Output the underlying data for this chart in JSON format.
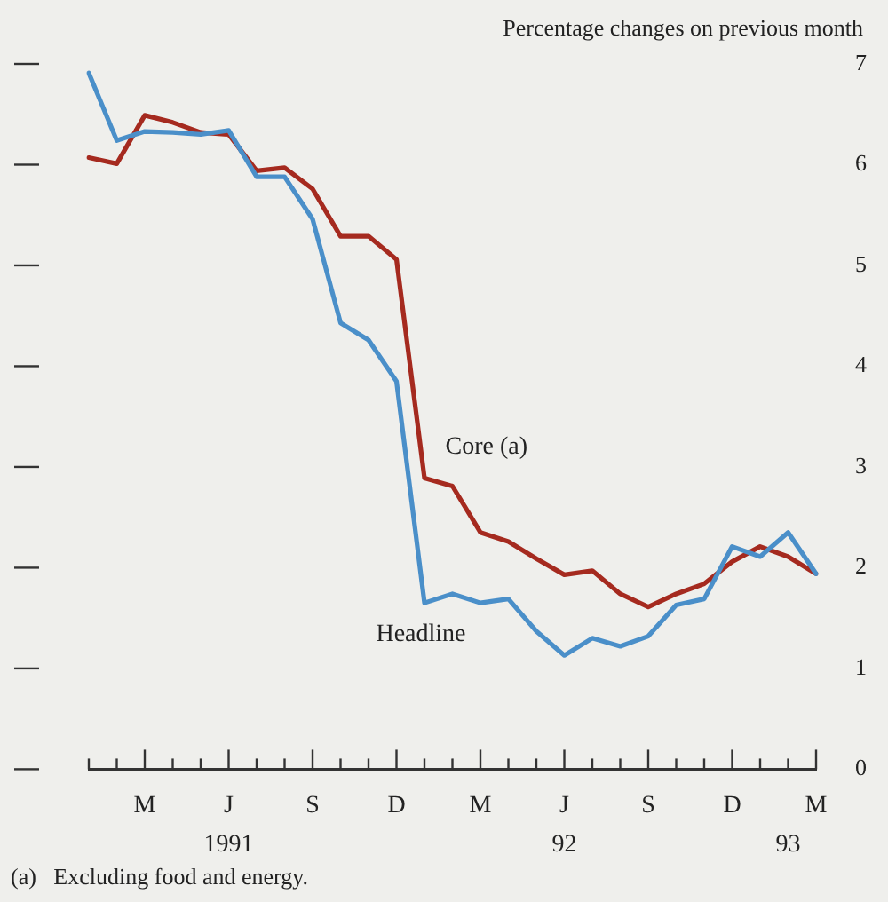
{
  "chart_data": {
    "type": "line",
    "ylabel": "Percentage changes on previous month",
    "annotations": [
      "1991",
      "92",
      "93",
      "(a)   Excluding food and energy."
    ],
    "categories": [
      null,
      null,
      "M",
      null,
      null,
      "J",
      null,
      null,
      "S",
      null,
      null,
      "D",
      null,
      null,
      "M",
      null,
      null,
      "J",
      null,
      null,
      "S",
      null,
      null,
      "D",
      null,
      null,
      "M"
    ],
    "ylim": [
      0,
      7
    ],
    "yticks": [
      0,
      1,
      2,
      3,
      4,
      5,
      6,
      7
    ],
    "legend": false,
    "series": [
      {
        "name": "Headline",
        "color": "#4a8fc9",
        "values": [
          6.91,
          6.24,
          6.33,
          6.32,
          6.3,
          6.34,
          5.88,
          5.88,
          5.46,
          4.43,
          4.26,
          3.85,
          1.65,
          1.74,
          1.65,
          1.69,
          1.37,
          1.13,
          1.3,
          1.22,
          1.32,
          1.63,
          1.69,
          2.21,
          2.11,
          2.35,
          1.94
        ]
      },
      {
        "name": "Core (a)",
        "color": "#a52a1f",
        "values": [
          6.07,
          6.01,
          6.49,
          6.42,
          6.32,
          6.3,
          5.94,
          5.97,
          5.76,
          5.29,
          5.29,
          5.06,
          2.89,
          2.81,
          2.35,
          2.26,
          2.09,
          1.93,
          1.97,
          1.74,
          1.61,
          1.74,
          1.84,
          2.06,
          2.21,
          2.11,
          1.94
        ]
      }
    ]
  }
}
